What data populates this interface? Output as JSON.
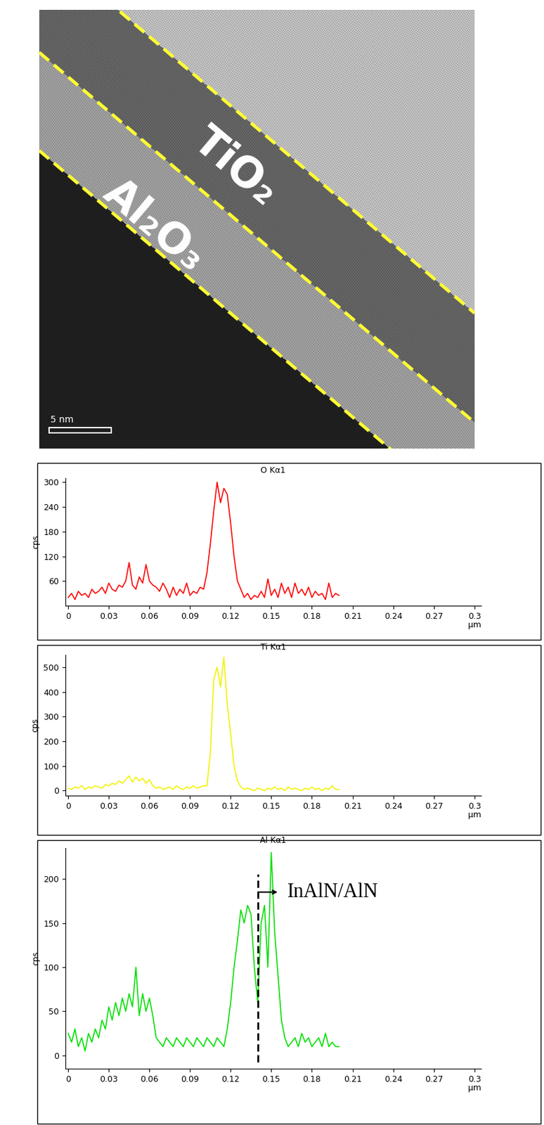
{
  "image": {
    "labels": [
      "TiO₂",
      "Al₂O₃"
    ],
    "scale_bar": "5 nm"
  },
  "chart_data": [
    {
      "type": "line",
      "title": "O Kα1",
      "y_label": "cps",
      "x_label": "μm",
      "color": "#ff0000",
      "xlim": [
        -0.002,
        0.305
      ],
      "xticks": [
        0,
        0.03,
        0.06,
        0.09,
        0.12,
        0.15,
        0.18,
        0.21,
        0.24,
        0.27,
        0.3
      ],
      "ylim": [
        0,
        310
      ],
      "yticks": [
        60,
        120,
        180,
        240,
        300
      ],
      "x": [
        0,
        0.0025,
        0.005,
        0.0075,
        0.01,
        0.0125,
        0.015,
        0.0175,
        0.02,
        0.0225,
        0.025,
        0.0275,
        0.03,
        0.0325,
        0.035,
        0.0375,
        0.04,
        0.0425,
        0.045,
        0.0475,
        0.05,
        0.0525,
        0.055,
        0.0575,
        0.06,
        0.0625,
        0.065,
        0.0675,
        0.07,
        0.0725,
        0.075,
        0.0775,
        0.08,
        0.0825,
        0.085,
        0.0875,
        0.09,
        0.0925,
        0.095,
        0.0975,
        0.1,
        0.1025,
        0.105,
        0.1075,
        0.11,
        0.1125,
        0.115,
        0.1175,
        0.12,
        0.1225,
        0.125,
        0.1275,
        0.13,
        0.1325,
        0.135,
        0.1375,
        0.14,
        0.1425,
        0.145,
        0.1475,
        0.15,
        0.1525,
        0.155,
        0.1575,
        0.16,
        0.1625,
        0.165,
        0.1675,
        0.17,
        0.1725,
        0.175,
        0.1775,
        0.18,
        0.1825,
        0.185,
        0.1875,
        0.19,
        0.1925,
        0.195,
        0.1975,
        0.2
      ],
      "values": [
        20,
        30,
        15,
        35,
        25,
        30,
        20,
        40,
        30,
        35,
        45,
        30,
        55,
        40,
        35,
        50,
        45,
        60,
        105,
        50,
        40,
        70,
        55,
        100,
        60,
        50,
        45,
        35,
        55,
        40,
        20,
        45,
        25,
        40,
        30,
        55,
        25,
        35,
        30,
        45,
        40,
        80,
        150,
        230,
        300,
        250,
        285,
        270,
        200,
        120,
        60,
        40,
        20,
        30,
        15,
        25,
        20,
        35,
        20,
        65,
        25,
        40,
        20,
        55,
        30,
        45,
        20,
        55,
        30,
        40,
        25,
        45,
        20,
        35,
        25,
        30,
        15,
        55,
        20,
        30,
        25
      ]
    },
    {
      "type": "line",
      "title": "Ti Kα1",
      "y_label": "cps",
      "x_label": "μm",
      "color": "#f2f200",
      "xlim": [
        -0.002,
        0.305
      ],
      "xticks": [
        0,
        0.03,
        0.06,
        0.09,
        0.12,
        0.15,
        0.18,
        0.21,
        0.24,
        0.27,
        0.3
      ],
      "ylim": [
        -20,
        550
      ],
      "yticks": [
        0,
        100,
        200,
        300,
        400,
        500
      ],
      "x": [
        0,
        0.0025,
        0.005,
        0.0075,
        0.01,
        0.0125,
        0.015,
        0.0175,
        0.02,
        0.0225,
        0.025,
        0.0275,
        0.03,
        0.0325,
        0.035,
        0.0375,
        0.04,
        0.0425,
        0.045,
        0.0475,
        0.05,
        0.0525,
        0.055,
        0.0575,
        0.06,
        0.0625,
        0.065,
        0.0675,
        0.07,
        0.0725,
        0.075,
        0.0775,
        0.08,
        0.0825,
        0.085,
        0.0875,
        0.09,
        0.0925,
        0.095,
        0.0975,
        0.1,
        0.1025,
        0.105,
        0.1075,
        0.11,
        0.1125,
        0.115,
        0.1175,
        0.12,
        0.1225,
        0.125,
        0.1275,
        0.13,
        0.1325,
        0.135,
        0.1375,
        0.14,
        0.1425,
        0.145,
        0.1475,
        0.15,
        0.1525,
        0.155,
        0.1575,
        0.16,
        0.1625,
        0.165,
        0.1675,
        0.17,
        0.1725,
        0.175,
        0.1775,
        0.18,
        0.1825,
        0.185,
        0.1875,
        0.19,
        0.1925,
        0.195,
        0.1975,
        0.2
      ],
      "values": [
        10,
        5,
        15,
        10,
        20,
        5,
        15,
        10,
        20,
        15,
        10,
        25,
        20,
        30,
        25,
        40,
        30,
        45,
        60,
        35,
        55,
        40,
        50,
        30,
        45,
        20,
        10,
        15,
        5,
        10,
        15,
        5,
        20,
        10,
        5,
        15,
        10,
        20,
        10,
        15,
        20,
        20,
        150,
        450,
        500,
        420,
        540,
        350,
        230,
        100,
        40,
        15,
        5,
        10,
        5,
        0,
        10,
        5,
        0,
        10,
        5,
        15,
        5,
        10,
        0,
        15,
        5,
        10,
        5,
        0,
        10,
        5,
        15,
        5,
        10,
        0,
        10,
        5,
        20,
        5,
        5
      ]
    },
    {
      "type": "line",
      "title": "Al Kα1",
      "y_label": "cps",
      "x_label": "μm",
      "color": "#00e000",
      "xlim": [
        -0.002,
        0.305
      ],
      "xticks": [
        0,
        0.03,
        0.06,
        0.09,
        0.12,
        0.15,
        0.18,
        0.21,
        0.24,
        0.27,
        0.3
      ],
      "ylim": [
        -15,
        235
      ],
      "yticks": [
        0,
        50,
        100,
        150,
        200
      ],
      "annotations": [
        {
          "text": "InAlN/AlN",
          "x": 0.14
        }
      ],
      "x": [
        0,
        0.0025,
        0.005,
        0.0075,
        0.01,
        0.0125,
        0.015,
        0.0175,
        0.02,
        0.0225,
        0.025,
        0.0275,
        0.03,
        0.0325,
        0.035,
        0.0375,
        0.04,
        0.0425,
        0.045,
        0.0475,
        0.05,
        0.0525,
        0.055,
        0.0575,
        0.06,
        0.0625,
        0.065,
        0.0675,
        0.07,
        0.0725,
        0.075,
        0.0775,
        0.08,
        0.0825,
        0.085,
        0.0875,
        0.09,
        0.0925,
        0.095,
        0.0975,
        0.1,
        0.1025,
        0.105,
        0.1075,
        0.11,
        0.1125,
        0.115,
        0.1175,
        0.12,
        0.1225,
        0.125,
        0.1275,
        0.13,
        0.1325,
        0.135,
        0.1375,
        0.14,
        0.1425,
        0.145,
        0.1475,
        0.15,
        0.1525,
        0.155,
        0.1575,
        0.16,
        0.1625,
        0.165,
        0.1675,
        0.17,
        0.1725,
        0.175,
        0.1775,
        0.18,
        0.1825,
        0.185,
        0.1875,
        0.19,
        0.1925,
        0.195,
        0.1975,
        0.2
      ],
      "values": [
        25,
        15,
        30,
        10,
        20,
        5,
        25,
        15,
        30,
        20,
        40,
        30,
        55,
        40,
        60,
        45,
        65,
        50,
        70,
        55,
        100,
        45,
        70,
        50,
        65,
        45,
        20,
        15,
        10,
        20,
        15,
        10,
        20,
        15,
        10,
        20,
        15,
        10,
        20,
        15,
        10,
        20,
        15,
        10,
        20,
        15,
        10,
        30,
        60,
        100,
        130,
        165,
        150,
        170,
        160,
        100,
        60,
        150,
        170,
        100,
        230,
        140,
        90,
        40,
        20,
        10,
        15,
        20,
        10,
        25,
        15,
        20,
        10,
        15,
        20,
        10,
        25,
        10,
        15,
        10,
        10
      ]
    }
  ]
}
